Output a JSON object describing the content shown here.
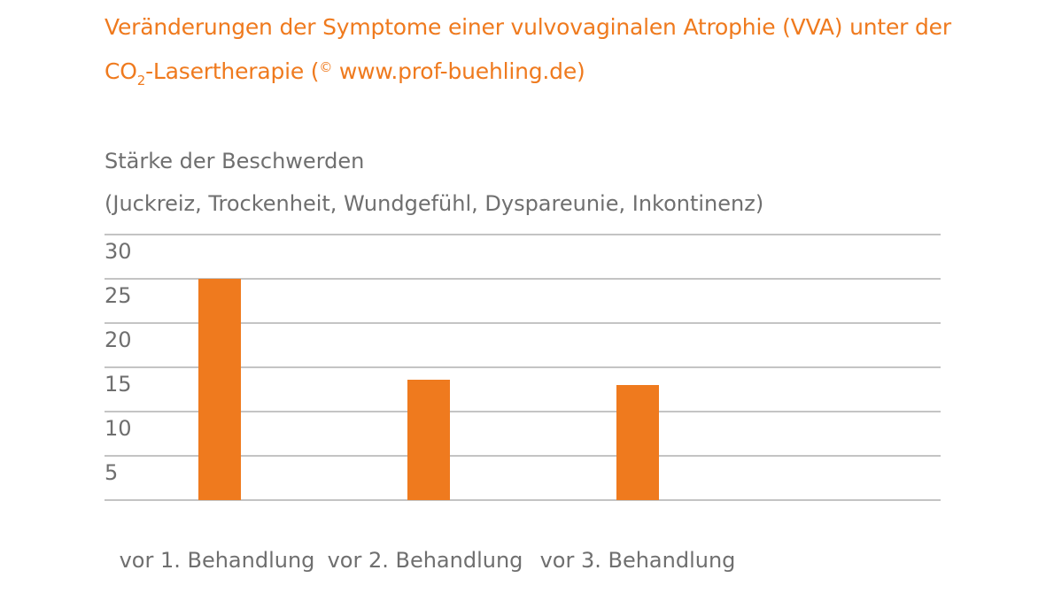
{
  "title": {
    "line1": "Veränderungen der Symptome einer vulvovaginalen Atrophie (VVA) unter der",
    "line2_prefix": "CO",
    "line2_subscript": "2",
    "line2_mid": "-Lasertherapie (",
    "line2_superscript": "©",
    "line2_suffix": " www.prof-buehling.de)"
  },
  "ylabel": {
    "line1": "Stärke der Beschwerden",
    "line2": "(Juckreiz, Trockenheit, Wundgefühl, Dyspareunie, Inkontinenz)"
  },
  "colors": {
    "accent": "#ef7a1e",
    "text": "#6f6f6f",
    "grid": "#8a8a8a"
  },
  "chart_data": {
    "type": "bar",
    "categories": [
      "vor 1. Behandlung",
      "vor 2. Behandlung",
      "vor 3. Behandlung"
    ],
    "values": [
      25,
      13.6,
      13
    ],
    "ylim": [
      0,
      30
    ],
    "yticks": [
      5,
      10,
      15,
      20,
      25,
      30
    ],
    "grid": true,
    "xlabel": "",
    "ylabel": "Stärke der Beschwerden (Juckreiz, Trockenheit, Wundgefühl, Dyspareunie, Inkontinenz)",
    "title": "Veränderungen der Symptome einer vulvovaginalen Atrophie (VVA) unter der CO2-Lasertherapie (© www.prof-buehling.de)"
  }
}
